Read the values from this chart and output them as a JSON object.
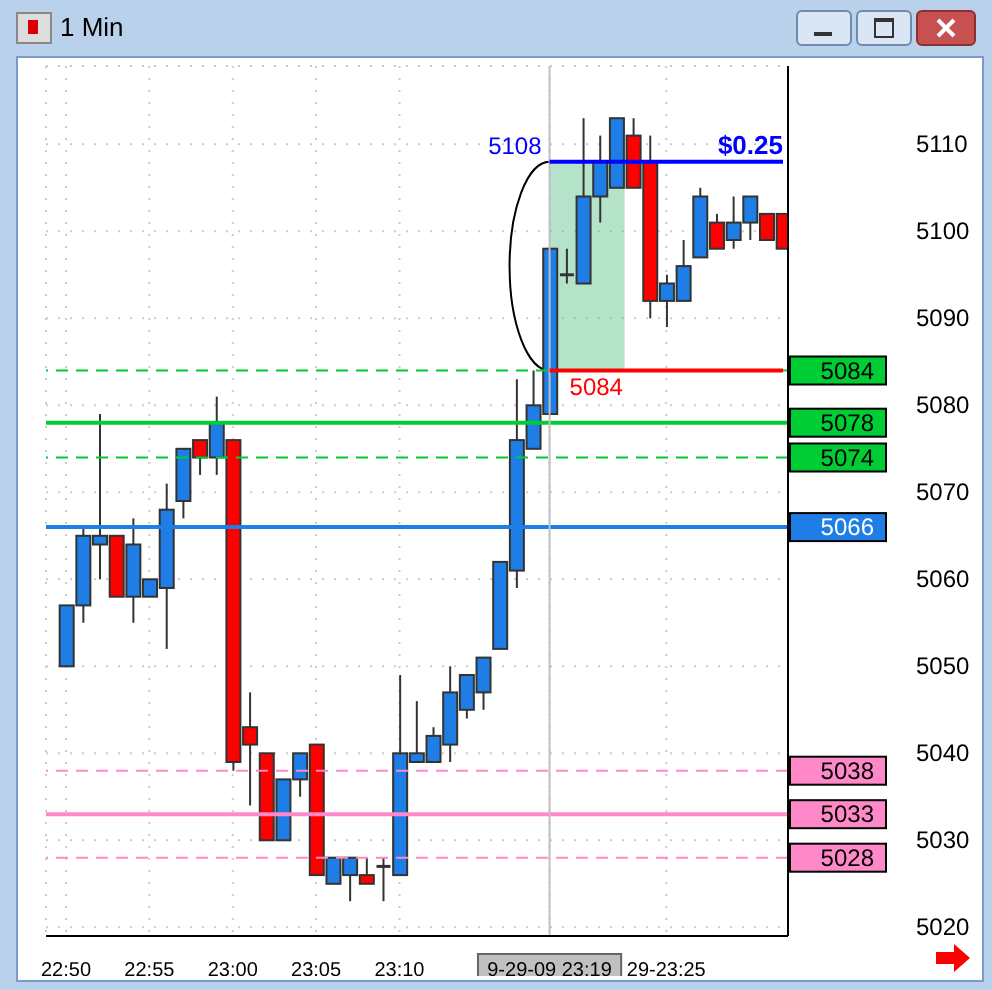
{
  "chart_data": {
    "type": "candlestick",
    "title": "1 Min",
    "categories": [
      "22:50",
      null,
      null,
      null,
      null,
      "22:55",
      null,
      null,
      null,
      null,
      "23:00",
      null,
      null,
      null,
      null,
      "23:05",
      null,
      null,
      null,
      null,
      "23:10",
      null,
      null,
      null,
      null,
      null,
      null,
      null,
      null,
      "9-29-09 23:19",
      null,
      null,
      null,
      null,
      null,
      null,
      "29-23:25",
      null,
      null,
      null,
      null,
      null,
      null,
      null
    ],
    "ohlc": [
      [
        5050,
        5057,
        5050,
        5057
      ],
      [
        5057,
        5066,
        5055,
        5065
      ],
      [
        5064,
        5079,
        5060,
        5065
      ],
      [
        5065,
        5065,
        5058,
        5058
      ],
      [
        5058,
        5067,
        5055,
        5064
      ],
      [
        5058,
        5060,
        5058,
        5060
      ],
      [
        5059,
        5071,
        5052,
        5068
      ],
      [
        5069,
        5075,
        5067,
        5075
      ],
      [
        5076,
        5076,
        5072,
        5074
      ],
      [
        5074,
        5081,
        5072,
        5078
      ],
      [
        5076,
        5076,
        5038,
        5039
      ],
      [
        5043,
        5047,
        5034,
        5041
      ],
      [
        5040,
        5040,
        5030,
        5030
      ],
      [
        5030,
        5037,
        5030,
        5037
      ],
      [
        5037,
        5040,
        5035,
        5040
      ],
      [
        5041,
        5041,
        5026,
        5026
      ],
      [
        5025,
        5028,
        5025,
        5028
      ],
      [
        5026,
        5028,
        5023,
        5028
      ],
      [
        5026,
        5028,
        5025,
        5025
      ],
      [
        5027,
        5028,
        5023,
        5027
      ],
      [
        5026,
        5049,
        5026,
        5040
      ],
      [
        5039,
        5046,
        5039,
        5040
      ],
      [
        5039,
        5043,
        5039,
        5042
      ],
      [
        5041,
        5050,
        5039,
        5047
      ],
      [
        5045,
        5049,
        5044,
        5049
      ],
      [
        5047,
        5051,
        5045,
        5051
      ],
      [
        5052,
        5062,
        5052,
        5062
      ],
      [
        5061,
        5083,
        5059,
        5076
      ],
      [
        5075,
        5084,
        5075,
        5080
      ],
      [
        5079,
        5098,
        5079,
        5098
      ],
      [
        5095,
        5098,
        5094,
        5095
      ],
      [
        5094,
        5113,
        5094,
        5104
      ],
      [
        5104,
        5111,
        5101,
        5108
      ],
      [
        5105,
        5113,
        5105,
        5113
      ],
      [
        5111,
        5113,
        5105,
        5105
      ],
      [
        5108,
        5111,
        5090,
        5092
      ],
      [
        5092,
        5095,
        5089,
        5094
      ],
      [
        5092,
        5099,
        5092,
        5096
      ],
      [
        5097,
        5105,
        5097,
        5104
      ],
      [
        5101,
        5102,
        5098,
        5098
      ],
      [
        5099,
        5104,
        5098,
        5101
      ],
      [
        5101,
        5104,
        5099,
        5104
      ],
      [
        5102,
        5102,
        5099,
        5099
      ],
      [
        5102,
        5102,
        5098,
        5098
      ]
    ],
    "colors": [
      "#1e7ee6",
      "#1e7ee6",
      "#1e7ee6",
      "#ff0000",
      "#1e7ee6",
      "#1e7ee6",
      "#1e7ee6",
      "#1e7ee6",
      "#ff0000",
      "#1e7ee6",
      "#ff0000",
      "#ff0000",
      "#ff0000",
      "#1e7ee6",
      "#1e7ee6",
      "#ff0000",
      "#1e7ee6",
      "#1e7ee6",
      "#ff0000",
      "#333333",
      "#1e7ee6",
      "#1e7ee6",
      "#1e7ee6",
      "#1e7ee6",
      "#1e7ee6",
      "#1e7ee6",
      "#1e7ee6",
      "#1e7ee6",
      "#1e7ee6",
      "#1e7ee6",
      "#333333",
      "#1e7ee6",
      "#1e7ee6",
      "#1e7ee6",
      "#ff0000",
      "#ff0000",
      "#1e7ee6",
      "#1e7ee6",
      "#1e7ee6",
      "#ff0000",
      "#1e7ee6",
      "#1e7ee6",
      "#ff0000",
      "#ff0000"
    ],
    "ylim": [
      5019,
      5119
    ],
    "yticks": [
      5020,
      5030,
      5040,
      5050,
      5060,
      5070,
      5080,
      5090,
      5100,
      5110
    ],
    "grid": true,
    "ref_lines": [
      {
        "axis": "y",
        "value": 5084,
        "label": "5084",
        "color": "#00cc33",
        "line_style": "dashed"
      },
      {
        "axis": "y",
        "value": 5078,
        "label": "5078",
        "color": "#00cc33",
        "line_style": "solid"
      },
      {
        "axis": "y",
        "value": 5074,
        "label": "5074",
        "color": "#00cc33",
        "line_style": "dashed"
      },
      {
        "axis": "y",
        "value": 5066,
        "label": "5066",
        "color": "#1e7ee6",
        "line_style": "solid"
      },
      {
        "axis": "y",
        "value": 5038,
        "label": "5038",
        "color": "#ff88c8",
        "line_style": "dashed"
      },
      {
        "axis": "y",
        "value": 5033,
        "label": "5033",
        "color": "#ff88c8",
        "line_style": "solid"
      },
      {
        "axis": "y",
        "value": 5028,
        "label": "5028",
        "color": "#ff88c8",
        "line_style": "dashed"
      },
      {
        "axis": "x",
        "value": "9-29-09 23:19",
        "color": "#c0c0c0"
      },
      {
        "axis": "y",
        "value": 5108,
        "color": "#0000ff"
      },
      {
        "axis": "y",
        "value": 5084,
        "color": "#ff0000"
      }
    ],
    "annotations": [
      {
        "text": "5108",
        "x": "9-29-09 23:19",
        "y": 5108
      },
      {
        "text": "5084",
        "x": "9-29-09 23:19",
        "y": 5084
      },
      "$0.25"
    ]
  }
}
